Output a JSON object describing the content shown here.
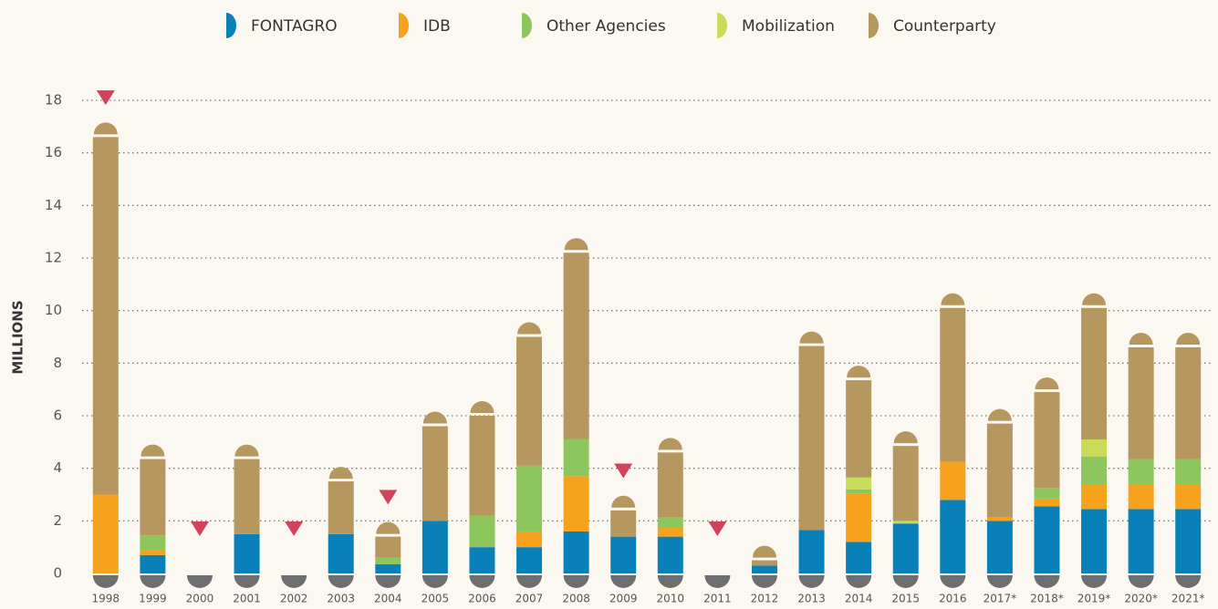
{
  "chart_data": {
    "type": "stacked_bar",
    "y_label": "MILLIONS",
    "categories": [
      "1998",
      "1999",
      "2000",
      "2001",
      "2002",
      "2003",
      "2004",
      "2005",
      "2006",
      "2007",
      "2008",
      "2009",
      "2010",
      "2011",
      "2012",
      "2013",
      "2014",
      "2015",
      "2016",
      "2017*",
      "2018*",
      "2019*",
      "2020*",
      "2021*"
    ],
    "series": [
      {
        "name": "FONTAGRO",
        "color": "#0a80b8",
        "values": [
          0,
          0.7,
          0,
          1.5,
          0,
          1.5,
          0.35,
          2.0,
          1.0,
          1.0,
          1.6,
          1.4,
          1.4,
          0,
          0.3,
          1.65,
          1.2,
          1.9,
          2.8,
          2.0,
          2.55,
          2.45,
          2.45,
          2.45
        ]
      },
      {
        "name": "IDB",
        "color": "#f6a21d",
        "values": [
          3.0,
          0.2,
          0,
          0,
          0,
          0,
          0,
          0,
          0,
          0.6,
          2.1,
          0,
          0.35,
          0,
          0,
          0,
          1.85,
          0,
          1.45,
          0.15,
          0.3,
          0.95,
          0.95,
          0.95
        ]
      },
      {
        "name": "Other Agencies",
        "color": "#8dc65c",
        "values": [
          0,
          0.55,
          0,
          0,
          0,
          0,
          0.25,
          0,
          1.2,
          2.5,
          1.4,
          0,
          0.4,
          0,
          0,
          0,
          0.15,
          0,
          0,
          0,
          0.4,
          1.05,
          0.95,
          0.95
        ]
      },
      {
        "name": "Mobilization",
        "color": "#c9dc5a",
        "values": [
          0,
          0,
          0,
          0,
          0,
          0,
          0,
          0,
          0,
          0,
          0,
          0,
          0,
          0,
          0,
          0,
          0.45,
          0.1,
          0,
          0,
          0,
          0.65,
          0,
          0
        ]
      },
      {
        "name": "Counterparty",
        "color": "#b5975f",
        "values": [
          13.6,
          2.9,
          0,
          2.85,
          0,
          2.0,
          0.8,
          3.6,
          3.8,
          4.9,
          7.1,
          1.0,
          2.45,
          0,
          0.2,
          7.0,
          3.7,
          2.85,
          5.85,
          3.55,
          3.65,
          5.0,
          4.25,
          4.25
        ]
      }
    ],
    "flagged_categories": [
      "1998",
      "2000",
      "2002",
      "2004",
      "2009",
      "2011"
    ],
    "flag_color": "#d1435b",
    "ylim": [
      0,
      18
    ],
    "yticks": [
      0,
      2,
      4,
      6,
      8,
      10,
      12,
      14,
      16,
      18
    ],
    "grid": true
  }
}
